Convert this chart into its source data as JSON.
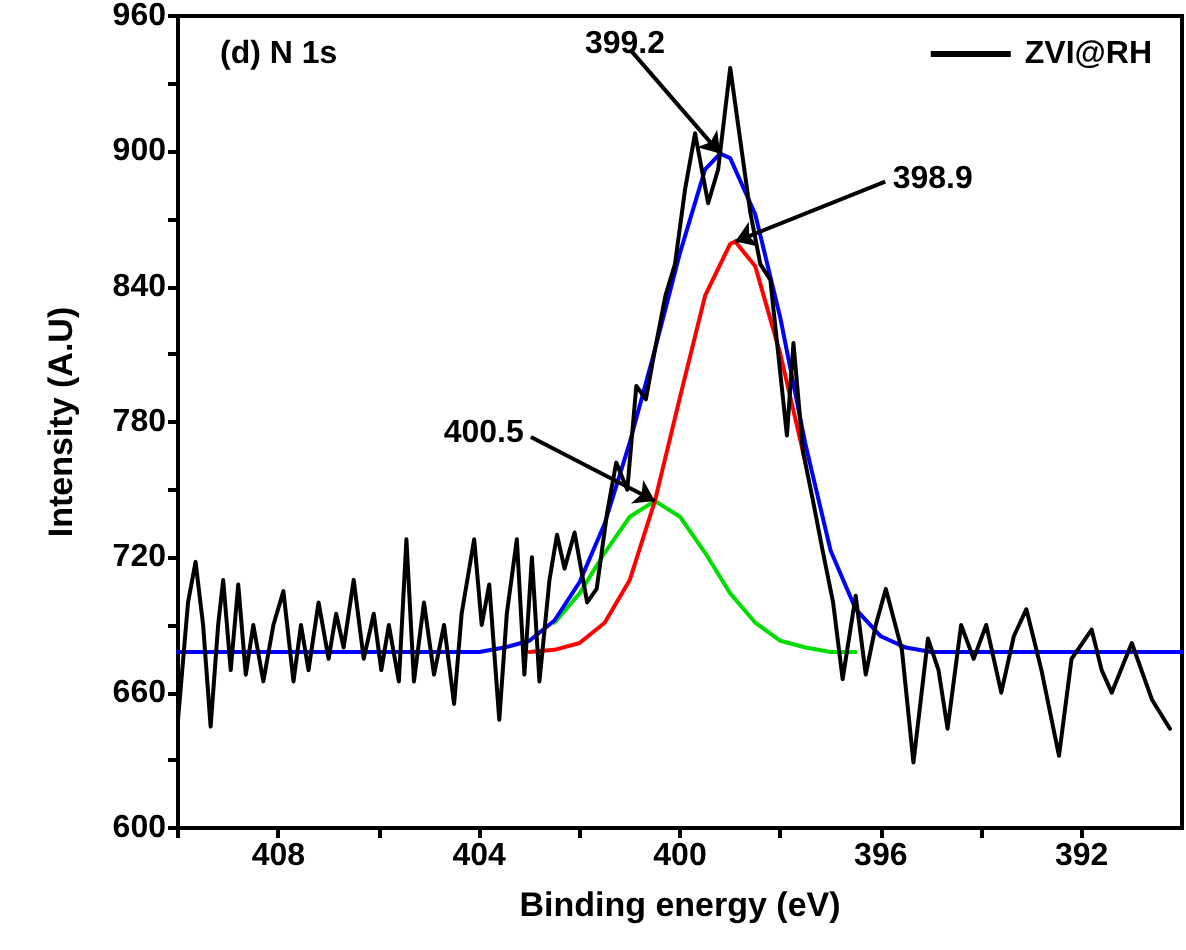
{
  "chart_data": {
    "type": "line",
    "title": "(d) N 1s",
    "xlabel": "Binding energy (eV)",
    "ylabel": "Intensity (A.U)",
    "xlim": [
      410,
      390
    ],
    "ylim": [
      600,
      960
    ],
    "xticks": [
      {
        "value": 410,
        "label": null
      },
      408,
      {
        "value": 406,
        "label": null
      },
      404,
      {
        "value": 402,
        "label": null
      },
      400,
      {
        "value": 398,
        "label": null
      },
      396,
      {
        "value": 394,
        "label": null
      },
      392
    ],
    "yticks": [
      600,
      {
        "value": 630,
        "label": null
      },
      660,
      {
        "value": 690,
        "label": null
      },
      720,
      {
        "value": 750,
        "label": null
      },
      780,
      {
        "value": 810,
        "label": null
      },
      840,
      {
        "value": 870,
        "label": null
      },
      900,
      {
        "value": 930,
        "label": null
      },
      960
    ],
    "grid": false,
    "legend": "top right",
    "marker": "none",
    "line_style": "solid",
    "annotations": [
      {
        "text": "399.2",
        "x": 399.2,
        "y": 899
      },
      {
        "text": "398.9",
        "x": 398.9,
        "y": 860
      },
      {
        "text": "400.5",
        "x": 400.5,
        "y": 745
      }
    ],
    "series": [
      {
        "name": "ZVI@RH",
        "color": "#000000",
        "x": [
          410.0,
          409.8,
          409.65,
          409.5,
          409.35,
          409.2,
          409.1,
          408.95,
          408.8,
          408.65,
          408.5,
          408.3,
          408.1,
          407.9,
          407.7,
          407.55,
          407.4,
          407.2,
          407.0,
          406.85,
          406.7,
          406.5,
          406.3,
          406.1,
          405.95,
          405.8,
          405.6,
          405.45,
          405.3,
          405.1,
          404.9,
          404.7,
          404.5,
          404.35,
          404.1,
          403.95,
          403.8,
          403.6,
          403.45,
          403.25,
          403.1,
          402.95,
          402.8,
          402.6,
          402.45,
          402.3,
          402.1,
          401.85,
          401.66,
          401.45,
          401.27,
          401.05,
          400.87,
          400.68,
          400.5,
          400.29,
          400.1,
          399.9,
          399.7,
          399.44,
          399.24,
          399.0,
          398.6,
          398.4,
          398.2,
          397.87,
          397.74,
          397.55,
          397.35,
          397.15,
          396.95,
          396.76,
          396.5,
          396.3,
          396.1,
          395.9,
          395.58,
          395.35,
          395.06,
          394.85,
          394.67,
          394.4,
          394.15,
          393.9,
          393.6,
          393.35,
          393.1,
          392.8,
          392.45,
          392.2,
          391.8,
          391.6,
          391.4,
          391.0,
          390.6,
          390.24
        ],
        "values": [
          648,
          700,
          718,
          690,
          645,
          690,
          710,
          670,
          708,
          668,
          690,
          665,
          690,
          705,
          665,
          690,
          670,
          700,
          675,
          695,
          680,
          710,
          675,
          695,
          670,
          690,
          665,
          728,
          665,
          700,
          668,
          690,
          655,
          695,
          728,
          690,
          708,
          648,
          695,
          728,
          668,
          720,
          665,
          710,
          730,
          715,
          731,
          700,
          706,
          740,
          762,
          750,
          796,
          790,
          812,
          836,
          850,
          883,
          908,
          877,
          892,
          937,
          873,
          850,
          843,
          774,
          815,
          767,
          745,
          722,
          700,
          666,
          703,
          668,
          690,
          706,
          679,
          629,
          684,
          670,
          644,
          690,
          675,
          690,
          660,
          685,
          697,
          670,
          632,
          675,
          688,
          670,
          660,
          682,
          657,
          644
        ]
      },
      {
        "color": "#00dd00",
        "x": [
          402.5,
          402,
          401.5,
          401,
          400.5,
          400,
          399.5,
          399,
          398.5,
          398,
          397.5,
          397,
          396.5
        ],
        "values": [
          691,
          704,
          722,
          738,
          745,
          738,
          722,
          704,
          691,
          683,
          680,
          678,
          678
        ]
      },
      {
        "color": "#ff0000",
        "x": [
          403,
          402.5,
          402,
          401.5,
          401,
          400.5,
          400,
          399.5,
          399,
          398.9,
          398.5,
          398,
          397.5
        ],
        "values": [
          678,
          679,
          682,
          691,
          710,
          745,
          791,
          836,
          859,
          860,
          849,
          810,
          762
        ]
      },
      {
        "color": "#0000ff",
        "x": [
          410,
          404,
          403.5,
          403,
          402.5,
          402,
          401.5,
          401,
          400.5,
          400,
          399.5,
          399.2,
          399,
          398.5,
          398,
          397.5,
          397,
          396.5,
          396,
          395.5,
          395,
          390
        ],
        "values": [
          678,
          678,
          680,
          683,
          692,
          709,
          735,
          771,
          812,
          855,
          892,
          899,
          897,
          872,
          826,
          770,
          723,
          697,
          685,
          680,
          678,
          678
        ]
      }
    ]
  }
}
